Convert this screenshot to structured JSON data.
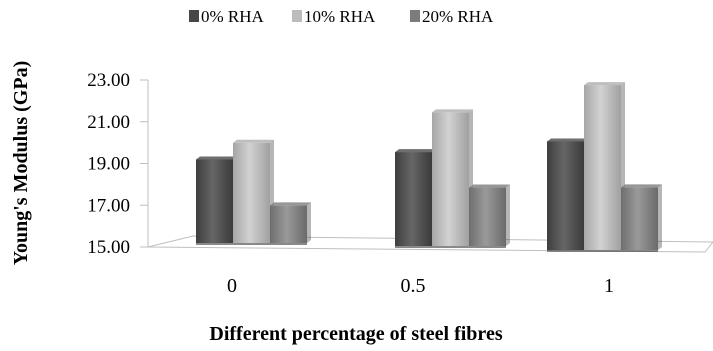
{
  "chart_data": {
    "type": "bar",
    "title": "",
    "xlabel": "Different percentage of steel fibres",
    "ylabel": "Young's Modulus (GPa)",
    "categories": [
      "0",
      "0.5",
      "1"
    ],
    "series": [
      {
        "name": "0% RHA",
        "values": [
          19.0,
          19.5,
          20.2
        ],
        "color": "#555555"
      },
      {
        "name": "10% RHA",
        "values": [
          19.8,
          21.4,
          22.9
        ],
        "color": "#b3b3b3"
      },
      {
        "name": "20% RHA",
        "values": [
          16.8,
          17.8,
          18.0
        ],
        "color": "#858585"
      }
    ],
    "yticks": [
      "15.00",
      "17.00",
      "19.00",
      "21.00",
      "23.00"
    ],
    "ylim": [
      15,
      23
    ],
    "legend": "top",
    "grid": false
  }
}
